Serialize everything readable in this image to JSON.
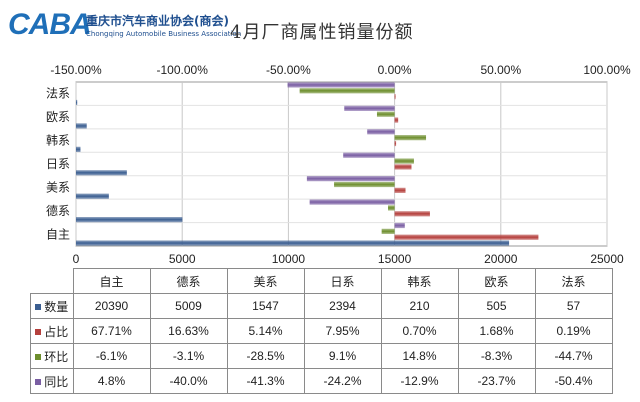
{
  "header": {
    "logo_mark": "CABA",
    "logo_cn": "重庆市汽车商业协会(商会)",
    "logo_en": "Chongqing Automobile Business Association",
    "title": "4月厂商属性销量份额"
  },
  "chart_data": {
    "type": "bar",
    "title": "4月厂商属性销量份额",
    "categories": [
      "自主",
      "德系",
      "美系",
      "日系",
      "韩系",
      "欧系",
      "法系"
    ],
    "top_axis": {
      "ticks": [
        "-150.00%",
        "-100.00%",
        "-50.00%",
        "0.00%",
        "50.00%",
        "100.00%"
      ],
      "range": [
        -150,
        100
      ]
    },
    "bottom_axis": {
      "ticks": [
        "0",
        "5000",
        "10000",
        "15000",
        "20000",
        "25000"
      ],
      "range": [
        0,
        25000
      ]
    },
    "grid": true,
    "series": [
      {
        "name": "数量",
        "axis": "bottom",
        "color": "#3b5e91",
        "values": [
          20390,
          5009,
          1547,
          2394,
          210,
          505,
          57
        ]
      },
      {
        "name": "占比",
        "axis": "top",
        "color": "#b5403d",
        "values": [
          67.71,
          16.63,
          5.14,
          7.95,
          0.7,
          1.68,
          0.19
        ]
      },
      {
        "name": "环比",
        "axis": "top",
        "color": "#6d8e2d",
        "values": [
          -6.1,
          -3.1,
          -28.5,
          9.1,
          14.8,
          -8.3,
          -44.7
        ]
      },
      {
        "name": "同比",
        "axis": "top",
        "color": "#7a5ea3",
        "values": [
          4.8,
          -40.0,
          -41.3,
          -24.2,
          -12.9,
          -23.7,
          -50.4
        ]
      }
    ]
  },
  "table": {
    "headers": [
      "自主",
      "德系",
      "美系",
      "日系",
      "韩系",
      "欧系",
      "法系"
    ],
    "rows": [
      {
        "label": "数量",
        "color": "#3b5e91",
        "cells": [
          "20390",
          "5009",
          "1547",
          "2394",
          "210",
          "505",
          "57"
        ]
      },
      {
        "label": "占比",
        "color": "#b5403d",
        "cells": [
          "67.71%",
          "16.63%",
          "5.14%",
          "7.95%",
          "0.70%",
          "1.68%",
          "0.19%"
        ]
      },
      {
        "label": "环比",
        "color": "#6d8e2d",
        "cells": [
          "-6.1%",
          "-3.1%",
          "-28.5%",
          "9.1%",
          "14.8%",
          "-8.3%",
          "-44.7%"
        ]
      },
      {
        "label": "同比",
        "color": "#7a5ea3",
        "cells": [
          "4.8%",
          "-40.0%",
          "-41.3%",
          "-24.2%",
          "-12.9%",
          "-23.7%",
          "-50.4%"
        ]
      }
    ]
  }
}
